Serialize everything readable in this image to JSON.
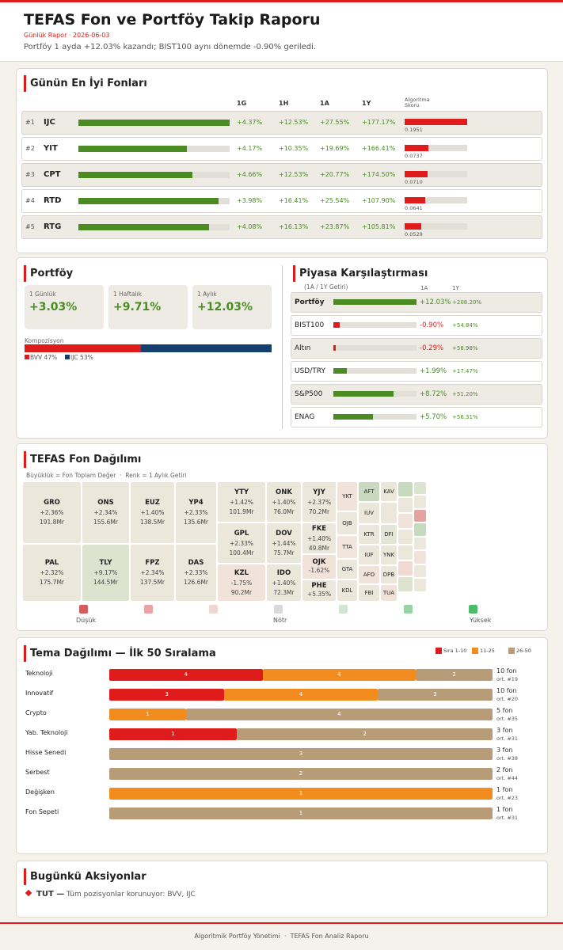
{
  "header": {
    "title": "TEFAS Fon ve Portföy Takip Raporu",
    "subtitle": "Günlük Rapor  ·  2026-06-03",
    "summary": "Portföy 1 ayda +12.03% kazandı; BIST100 aynı dönemde -0.90% geriledi."
  },
  "top_funds": {
    "title": "Günün En İyi Fonları",
    "columns": [
      "1G",
      "1H",
      "1A",
      "1Y"
    ],
    "score_header": "Algoritma Skoru",
    "bar_color": "#4a8c22",
    "score_color": "#e01b1b",
    "rows": [
      {
        "rank": "#1",
        "code": "IJC",
        "values": [
          4.37,
          12.53,
          27.55,
          177.17
        ],
        "value_labels": [
          "+4.37%",
          "+12.53%",
          "+27.55%",
          "+177.17%"
        ],
        "score": 0.1951,
        "score_label": "0.1951"
      },
      {
        "rank": "#2",
        "code": "YIT",
        "values": [
          4.17,
          10.35,
          19.69,
          166.41
        ],
        "value_labels": [
          "+4.17%",
          "+10.35%",
          "+19.69%",
          "+166.41%"
        ],
        "score": 0.0737,
        "score_label": "0.0737"
      },
      {
        "rank": "#3",
        "code": "CPT",
        "values": [
          4.66,
          12.53,
          20.77,
          174.5
        ],
        "value_labels": [
          "+4.66%",
          "+12.53%",
          "+20.77%",
          "+174.50%"
        ],
        "score": 0.071,
        "score_label": "0.0710"
      },
      {
        "rank": "#4",
        "code": "RTD",
        "values": [
          3.98,
          16.41,
          25.54,
          107.9
        ],
        "value_labels": [
          "+3.98%",
          "+16.41%",
          "+25.54%",
          "+107.90%"
        ],
        "score": 0.0641,
        "score_label": "0.0641"
      },
      {
        "rank": "#5",
        "code": "RTG",
        "values": [
          4.08,
          16.13,
          23.87,
          105.81
        ],
        "value_labels": [
          "+4.08%",
          "+16.13%",
          "+23.87%",
          "+105.81%"
        ],
        "score": 0.0529,
        "score_label": "0.0529"
      }
    ]
  },
  "portfolio": {
    "title": "Portföy",
    "periods": [
      {
        "label": "1 Günlük",
        "value": "+3.03%"
      },
      {
        "label": "1 Haftalık",
        "value": "+9.71%"
      },
      {
        "label": "1 Aylık",
        "value": "+12.03%"
      }
    ],
    "composition_title": "Kompozisyon",
    "composition": [
      {
        "value": 47,
        "label": "BVV 47%",
        "color": "#e01b1b"
      },
      {
        "value": 53,
        "label": "IJC 53%",
        "color": "#163e6e"
      }
    ]
  },
  "market": {
    "title": "Piyasa Karşılaştırması",
    "subtitle": "(1A / 1Y Getiri)",
    "columns": [
      "1A",
      "1Y"
    ],
    "rows": [
      {
        "name": "Portföy",
        "values": [
          12.03,
          208.2
        ],
        "value_labels": [
          "+12.03%",
          "+208.20%"
        ]
      },
      {
        "name": "BIST100",
        "values": [
          -0.9,
          54.84
        ],
        "value_labels": [
          "-0.90%",
          "+54.84%"
        ]
      },
      {
        "name": "Altın",
        "values": [
          -0.29,
          58.98
        ],
        "value_labels": [
          "-0.29%",
          "+58.98%"
        ]
      },
      {
        "name": "USD/TRY",
        "values": [
          1.99,
          17.47
        ],
        "value_labels": [
          "+1.99%",
          "+17.47%"
        ]
      },
      {
        "name": "S&P500",
        "values": [
          8.72,
          51.2
        ],
        "value_labels": [
          "+8.72%",
          "+51.20%"
        ]
      },
      {
        "name": "ENAG",
        "values": [
          5.7,
          56.31
        ],
        "value_labels": [
          "+5.70%",
          "+56.31%"
        ]
      }
    ]
  },
  "distribution": {
    "title": "TEFAS Fon Dağılımı",
    "subtitle": "Büyüklük = Fon Toplam Değer  ·  Renk = 1 Aylık Getiri",
    "tiles": [
      {
        "code": "GRO",
        "return": "+2.36%",
        "size": "191.8Mr",
        "color": "#ebe8db"
      },
      {
        "code": "ONS",
        "return": "+2.34%",
        "size": "155.6Mr",
        "color": "#ebe8db"
      },
      {
        "code": "EUZ",
        "return": "+1.40%",
        "size": "138.5Mr",
        "color": "#ebe8db"
      },
      {
        "code": "YP4",
        "return": "+2.33%",
        "size": "135.6Mr",
        "color": "#ebe8db"
      },
      {
        "code": "PAL",
        "return": "+2.32%",
        "size": "175.7Mr",
        "color": "#ebe8db"
      },
      {
        "code": "TLY",
        "return": "+9.17%",
        "size": "144.5Mr",
        "color": "#dce3cf"
      },
      {
        "code": "FPZ",
        "return": "+2.34%",
        "size": "137.5Mr",
        "color": "#ebe8db"
      },
      {
        "code": "DAS",
        "return": "+2.33%",
        "size": "126.6Mr",
        "color": "#ebe8db"
      },
      {
        "code": "YTY",
        "return": "+1.42%",
        "size": "101.9Mr",
        "color": "#ebe8db"
      },
      {
        "code": "GPL",
        "return": "+2.33%",
        "size": "100.4Mr",
        "color": "#ebe8db"
      },
      {
        "code": "KZL",
        "return": "-1.75%",
        "size": "90.2Mr",
        "color": "#f2e3da"
      },
      {
        "code": "ONK",
        "return": "+1.40%",
        "size": "76.0Mr",
        "color": "#ebe8db"
      },
      {
        "code": "DOV",
        "return": "+1.44%",
        "size": "75.7Mr",
        "color": "#ebe8db"
      },
      {
        "code": "IDO",
        "return": "+1.40%",
        "size": "72.3Mr",
        "color": "#ebe8db"
      },
      {
        "code": "YJY",
        "return": "+2.37%",
        "size": "70.2Mr",
        "color": "#ebe8db"
      },
      {
        "code": "FKE",
        "return": "+1.40%",
        "size": "49.8Mr",
        "color": "#ebe8db"
      },
      {
        "code": "OJK",
        "return": "-1.62%",
        "color": "#f2e3da"
      },
      {
        "code": "PHE",
        "return": "+5.35%",
        "color": "#ebe8db"
      },
      {
        "code": "YKT",
        "color": "#f2e3da"
      },
      {
        "code": "OJB",
        "color": "#ebe8db"
      },
      {
        "code": "TTA",
        "color": "#f2e5dc"
      },
      {
        "code": "GTA",
        "color": "#ebe8db"
      },
      {
        "code": "KDL",
        "color": "#ebe8db"
      },
      {
        "code": "AFT",
        "color": "#c9d9bf"
      },
      {
        "code": "IUV",
        "color": "#ebe8db"
      },
      {
        "code": "KTR",
        "color": "#ebe8db"
      },
      {
        "code": "IUF",
        "color": "#ebe8db"
      },
      {
        "code": "AFO",
        "color": "#f2e3da"
      },
      {
        "code": "FBI",
        "color": "#ebe8db"
      },
      {
        "code": "KAV",
        "color": "#ebe8db"
      },
      {
        "code": "DFI",
        "color": "#e3e5d6"
      },
      {
        "code": "YNK",
        "color": "#ebe8db"
      },
      {
        "code": "DPB",
        "color": "#ebe8db"
      },
      {
        "code": "TUA",
        "color": "#f2e3da"
      }
    ],
    "legend": {
      "low": "Düşük",
      "mid": "Nötr",
      "high": "Yüksek",
      "colors": [
        "#d35c5c",
        "#eba3a3",
        "#f0d6d2",
        "#d9d9d9",
        "#cfe6d3",
        "#98d3a5",
        "#4cbb6b"
      ]
    }
  },
  "themes": {
    "title": "Tema Dağılımı — İlk 50 Sıralama",
    "groups": [
      {
        "name": "Sıra 1-10",
        "color": "#e01b1b"
      },
      {
        "name": "11-25",
        "color": "#f28c1e"
      },
      {
        "name": "26-50",
        "color": "#b89c78"
      }
    ],
    "rows": [
      {
        "name": "Teknoloji",
        "values": [
          4,
          4,
          2
        ],
        "total": "10 fon",
        "average": "ort. #19"
      },
      {
        "name": "Innovatif",
        "values": [
          3,
          4,
          3
        ],
        "total": "10 fon",
        "average": "ort. #20"
      },
      {
        "name": "Crypto",
        "values": [
          0,
          1,
          4
        ],
        "total": "5 fon",
        "average": "ort. #35"
      },
      {
        "name": "Yab. Teknoloji",
        "values": [
          1,
          0,
          2
        ],
        "total": "3 fon",
        "average": "ort. #31"
      },
      {
        "name": "Hisse Senedi",
        "values": [
          0,
          0,
          3
        ],
        "total": "3 fon",
        "average": "ort. #38"
      },
      {
        "name": "Serbest",
        "values": [
          0,
          0,
          2
        ],
        "total": "2 fon",
        "average": "ort. #44"
      },
      {
        "name": "Değişken",
        "values": [
          0,
          1,
          0
        ],
        "total": "1 fon",
        "average": "ort. #23"
      },
      {
        "name": "Fon Sepeti",
        "values": [
          0,
          0,
          1
        ],
        "total": "1 fon",
        "average": "ort. #31"
      }
    ]
  },
  "actions": {
    "title": "Bugünkü Aksiyonlar",
    "items": [
      {
        "action": "TUT —",
        "detail": "Tüm pozisyonlar korunuyor: BVV, IJC"
      }
    ]
  },
  "footer": "Algoritmik Portföy Yönetimi  ·  TEFAS Fon Analiz Raporu"
}
